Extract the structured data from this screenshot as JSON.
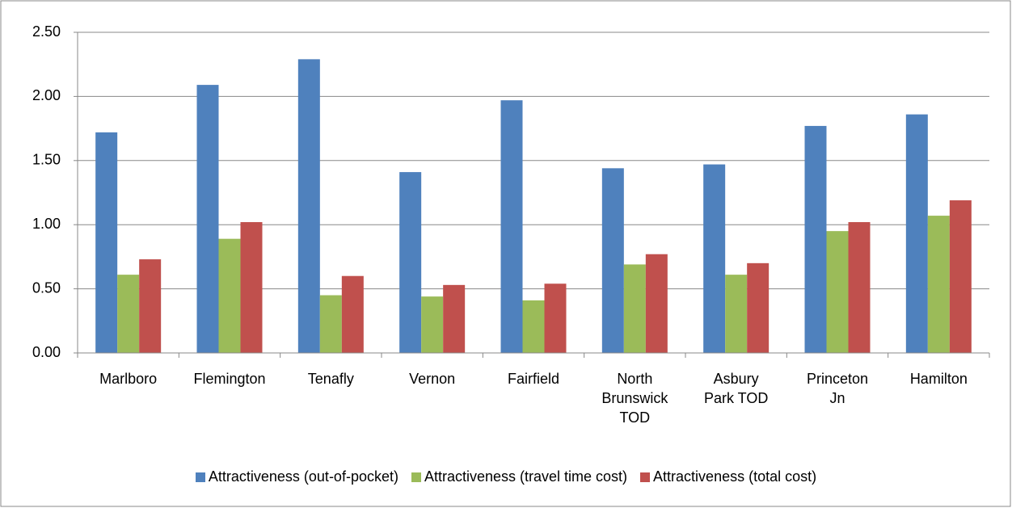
{
  "chart_data": {
    "type": "bar",
    "categories": [
      "Marlboro",
      "Flemington",
      "Tenafly",
      "Vernon",
      "Fairfield",
      "North Brunswick TOD",
      "Asbury Park TOD",
      "Princeton Jn",
      "Hamilton"
    ],
    "series": [
      {
        "name": "Attractiveness (out-of-pocket)",
        "color": "#4f81bd",
        "values": [
          1.72,
          2.09,
          2.29,
          1.41,
          1.97,
          1.44,
          1.47,
          1.77,
          1.86
        ]
      },
      {
        "name": "Attractiveness (travel time cost)",
        "color": "#9bbb59",
        "values": [
          0.61,
          0.89,
          0.45,
          0.44,
          0.41,
          0.69,
          0.61,
          0.95,
          1.07
        ]
      },
      {
        "name": "Attractiveness (total cost)",
        "color": "#c0504d",
        "values": [
          0.73,
          1.02,
          0.6,
          0.53,
          0.54,
          0.77,
          0.7,
          1.02,
          1.19
        ]
      }
    ],
    "ylim": [
      0,
      2.5
    ],
    "yticks": [
      {
        "value": 0,
        "label": "0.00"
      },
      {
        "value": 0.5,
        "label": "0.50"
      },
      {
        "value": 1,
        "label": "1.00"
      },
      {
        "value": 1.5,
        "label": "1.50"
      },
      {
        "value": 2,
        "label": "2.00"
      },
      {
        "value": 2.5,
        "label": "2.50"
      }
    ],
    "grid": true,
    "legend": "bottom"
  }
}
